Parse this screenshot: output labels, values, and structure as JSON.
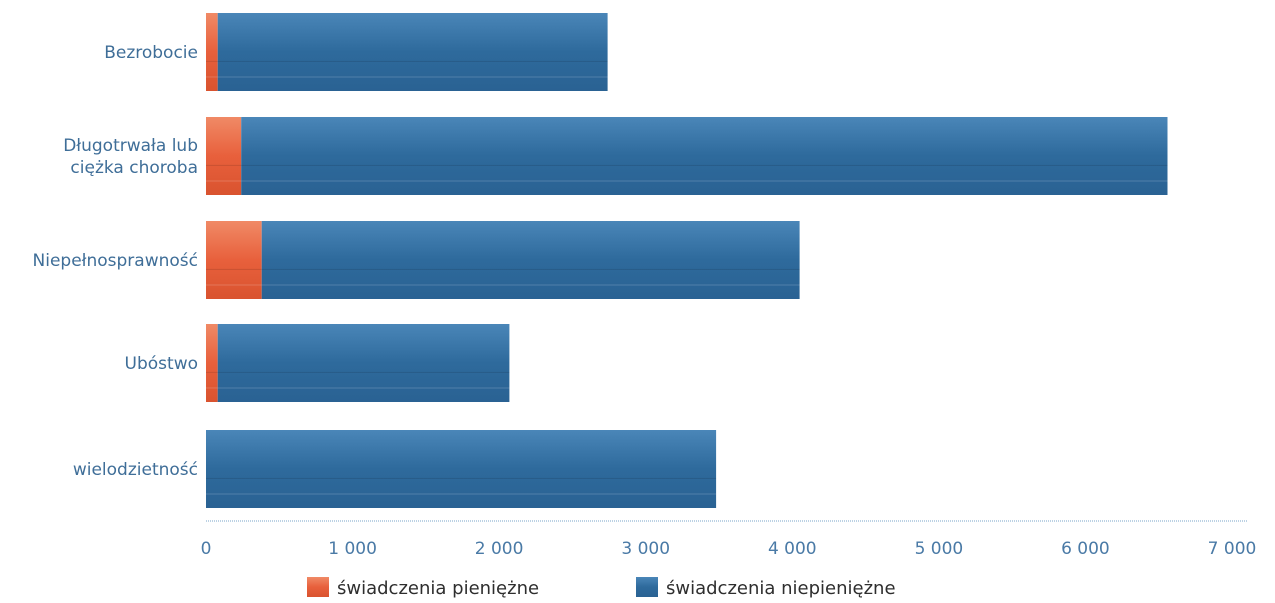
{
  "colors": {
    "cash": "#e8603c",
    "non_cash": "#2e6a9c",
    "axis": "#7aa6c8",
    "label": "#3f6e98"
  },
  "chart_data": {
    "type": "bar",
    "orientation": "horizontal",
    "stacked": true,
    "categories": [
      [
        "Bezrobocie"
      ],
      [
        "Długotrwała lub",
        "ciężka choroba"
      ],
      [
        "Niepełnosprawność"
      ],
      [
        "Ubóstwo"
      ],
      [
        "wielodzietność"
      ]
    ],
    "series": [
      {
        "name": "świadczenia pieniężne",
        "color": "#e8603c",
        "values": [
          80,
          240,
          380,
          80,
          0
        ]
      },
      {
        "name": "świadczenia niepieniężne",
        "color": "#2e6a9c",
        "values": [
          2660,
          6320,
          3670,
          1990,
          3480
        ]
      }
    ],
    "xlim": [
      0,
      7000
    ],
    "xticks": [
      0,
      1000,
      2000,
      3000,
      4000,
      5000,
      6000,
      7000
    ],
    "xtick_labels": [
      "0",
      "1 000",
      "2 000",
      "3 000",
      "4 000",
      "5 000",
      "6 000",
      "7 000"
    ],
    "grid": false,
    "legend_position": "bottom-center",
    "title": "",
    "xlabel": "",
    "ylabel": ""
  }
}
